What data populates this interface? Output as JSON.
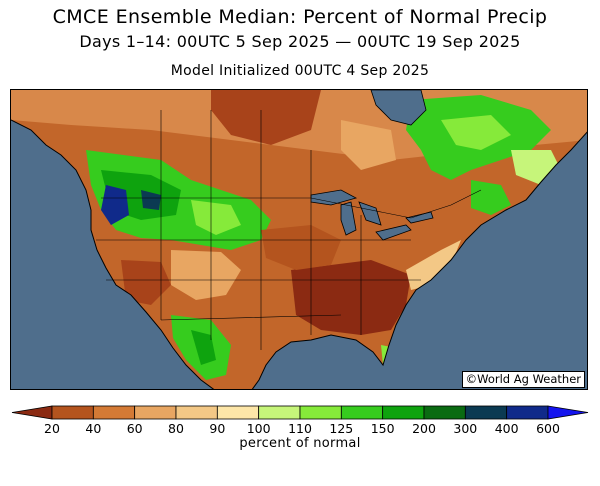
{
  "header": {
    "title": "CMCE Ensemble Median: Percent of Normal Precip",
    "subtitle": "Days 1–14: 00UTC 5 Sep 2025 — 00UTC 19 Sep 2025",
    "initialized": "Model Initialized 00UTC 4 Sep 2025"
  },
  "map": {
    "ocean_color": "#4f6e8c",
    "border_color": "#000000",
    "copyright": "©World Ag Weather"
  },
  "legend": {
    "unit_label": "percent of normal",
    "bins": [
      {
        "color": "#8b2a12"
      },
      {
        "color": "#b4541e"
      },
      {
        "color": "#d47a35"
      },
      {
        "color": "#e8a662"
      },
      {
        "color": "#f3c886"
      },
      {
        "color": "#fde6a8"
      },
      {
        "color": "#c6f57a"
      },
      {
        "color": "#86ea3a"
      },
      {
        "color": "#36cc1e"
      },
      {
        "color": "#0ea30e"
      },
      {
        "color": "#0a6b12"
      },
      {
        "color": "#0b3a52"
      },
      {
        "color": "#102a8a"
      },
      {
        "color": "#1414ee"
      }
    ],
    "ticks": [
      "20",
      "40",
      "60",
      "80",
      "90",
      "100",
      "110",
      "125",
      "150",
      "200",
      "300",
      "400",
      "600"
    ]
  }
}
